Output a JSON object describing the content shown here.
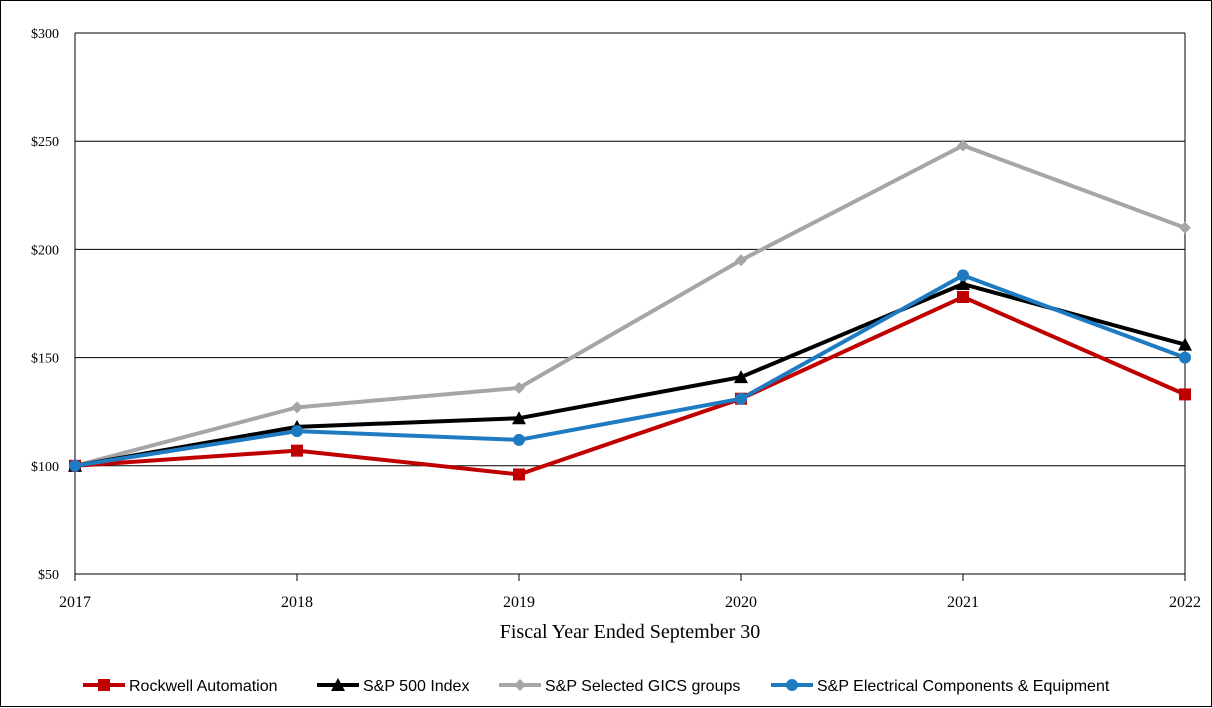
{
  "chart_data": {
    "type": "line",
    "title": "",
    "xlabel": "Fiscal Year Ended September 30",
    "ylabel": "",
    "x": [
      "2017",
      "2018",
      "2019",
      "2020",
      "2021",
      "2022"
    ],
    "ylim": [
      50,
      300
    ],
    "yticks": [
      50,
      100,
      150,
      200,
      250,
      300
    ],
    "ytick_labels": [
      "$50",
      "$100",
      "$150",
      "$200",
      "$250",
      "$300"
    ],
    "grid": "horizontal",
    "legend_position": "bottom",
    "series": [
      {
        "name": "Rockwell Automation",
        "color": "#C00000",
        "marker": "square",
        "values": [
          100,
          107,
          96,
          131,
          178,
          133
        ]
      },
      {
        "name": "S&P 500 Index",
        "color": "#000000",
        "marker": "triangle",
        "values": [
          100,
          118,
          122,
          141,
          184,
          156
        ]
      },
      {
        "name": "S&P Selected GICS groups",
        "color": "#A6A6A6",
        "marker": "diamond",
        "values": [
          100,
          127,
          136,
          195,
          248,
          210
        ]
      },
      {
        "name": "S&P Electrical Components & Equipment",
        "color": "#1F7BC1",
        "marker": "circle",
        "values": [
          100,
          116,
          112,
          131,
          188,
          150
        ]
      }
    ]
  }
}
